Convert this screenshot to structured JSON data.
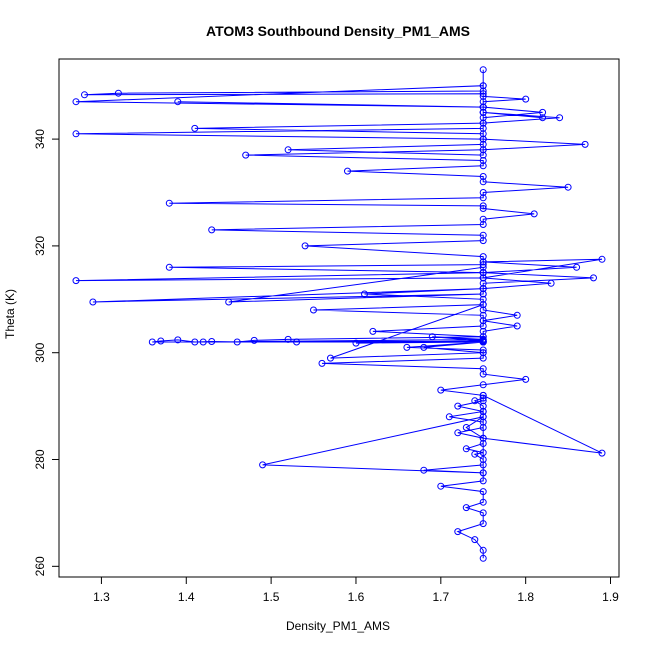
{
  "chart_data": {
    "type": "scatter",
    "title": "ATOM3 Southbound Density_PM1_AMS",
    "xlabel": "Density_PM1_AMS",
    "ylabel": "Theta (K)",
    "xlim": [
      1.25,
      1.91
    ],
    "ylim": [
      258,
      355
    ],
    "x_ticks": [
      1.3,
      1.4,
      1.5,
      1.6,
      1.7,
      1.8,
      1.9
    ],
    "x_tick_labels": [
      "1.3",
      "1.4",
      "1.5",
      "1.6",
      "1.7",
      "1.8",
      "1.9"
    ],
    "y_ticks": [
      260,
      280,
      300,
      320,
      340
    ],
    "y_tick_labels": [
      "260",
      "280",
      "300",
      "320",
      "340"
    ],
    "grid": false,
    "legend": "none",
    "marker": "open-circle",
    "connect_points": true,
    "color": "#0000ff",
    "series": [
      {
        "x": [
          1.75,
          1.75,
          1.74,
          1.72,
          1.75,
          1.75,
          1.73,
          1.75,
          1.75,
          1.7,
          1.75,
          1.75,
          1.68,
          1.75,
          1.75,
          1.74,
          1.75,
          1.73,
          1.75,
          1.75,
          1.72,
          1.75,
          1.75,
          1.71,
          1.75,
          1.75,
          1.74,
          1.75,
          1.75,
          1.89,
          1.75,
          1.73,
          1.75,
          1.75,
          1.49,
          1.75,
          1.75,
          1.72,
          1.75,
          1.75,
          1.7,
          1.75,
          1.8,
          1.75,
          1.75,
          1.56,
          1.75,
          1.75,
          1.68,
          1.75,
          1.75,
          1.62,
          1.75,
          1.75,
          1.79,
          1.75,
          1.75,
          1.57,
          1.75,
          1.75,
          1.66,
          1.75,
          1.75,
          1.42,
          1.75,
          1.75,
          1.53,
          1.75,
          1.75,
          1.6,
          1.75,
          1.75,
          1.69,
          1.75,
          1.75,
          1.36,
          1.37,
          1.39,
          1.41,
          1.43,
          1.46,
          1.48,
          1.52,
          1.75,
          1.75,
          1.79,
          1.75,
          1.75,
          1.55,
          1.75,
          1.75,
          1.61,
          1.75,
          1.75,
          1.88,
          1.75,
          1.75,
          1.45,
          1.75,
          1.75,
          1.29,
          1.75,
          1.75,
          1.83,
          1.75,
          1.75,
          1.38,
          1.75,
          1.75,
          1.89,
          1.75,
          1.75,
          1.27,
          1.75,
          1.75,
          1.86,
          1.75,
          1.75,
          1.54,
          1.75,
          1.75,
          1.43,
          1.75,
          1.75,
          1.81,
          1.75,
          1.75,
          1.38,
          1.75,
          1.75,
          1.85,
          1.75,
          1.75,
          1.59,
          1.75,
          1.75,
          1.47,
          1.75,
          1.75,
          1.87,
          1.75,
          1.75,
          1.41,
          1.75,
          1.75,
          1.82,
          1.75,
          1.75,
          1.52,
          1.75,
          1.75,
          1.27,
          1.75,
          1.75,
          1.84,
          1.75,
          1.75,
          1.39,
          1.75,
          1.75,
          1.8,
          1.75,
          1.75,
          1.28,
          1.32,
          1.75,
          1.75,
          1.27,
          1.75,
          1.75,
          1.82,
          1.75,
          1.75,
          1.75
        ],
        "y": [
          261.5,
          263,
          265,
          266.5,
          268,
          270,
          271,
          272,
          274,
          275,
          276,
          277.5,
          278,
          279,
          280,
          281,
          281.3,
          282,
          283,
          284,
          285,
          286,
          287,
          288,
          289,
          290,
          291,
          291.5,
          292,
          281.2,
          284,
          286,
          288,
          277.5,
          279,
          288,
          289,
          290,
          291,
          292,
          293,
          294,
          295,
          296,
          297,
          298,
          299,
          300,
          301,
          302,
          303,
          304,
          305,
          306,
          307,
          308,
          309,
          299,
          300,
          300.5,
          301,
          302,
          302.5,
          302,
          302.2,
          302,
          302,
          302.1,
          302.3,
          301.8,
          302,
          302.2,
          303,
          302.5,
          302,
          302,
          302.2,
          302.4,
          302,
          302.1,
          302,
          302.3,
          302.5,
          303,
          304,
          305,
          306,
          307,
          308,
          309,
          310,
          311,
          312,
          313,
          314,
          315,
          316,
          309.5,
          311,
          312,
          309.5,
          311,
          312,
          313,
          314,
          315,
          316,
          316.5,
          317,
          317.5,
          314,
          315,
          313.5,
          314,
          315,
          316,
          317,
          318,
          320,
          321,
          322,
          323,
          324,
          325,
          326,
          327,
          327.5,
          328,
          329,
          330,
          331,
          332,
          333,
          334,
          335,
          336,
          337,
          338,
          338,
          339,
          340,
          341,
          342,
          343,
          344,
          345,
          346,
          337,
          338,
          339,
          340,
          341,
          342,
          343,
          344,
          345,
          346,
          347,
          346,
          347,
          347.5,
          348,
          348.5,
          348.3,
          348.6,
          349,
          350,
          347,
          346,
          345,
          344,
          345,
          350,
          353
        ]
      }
    ]
  }
}
